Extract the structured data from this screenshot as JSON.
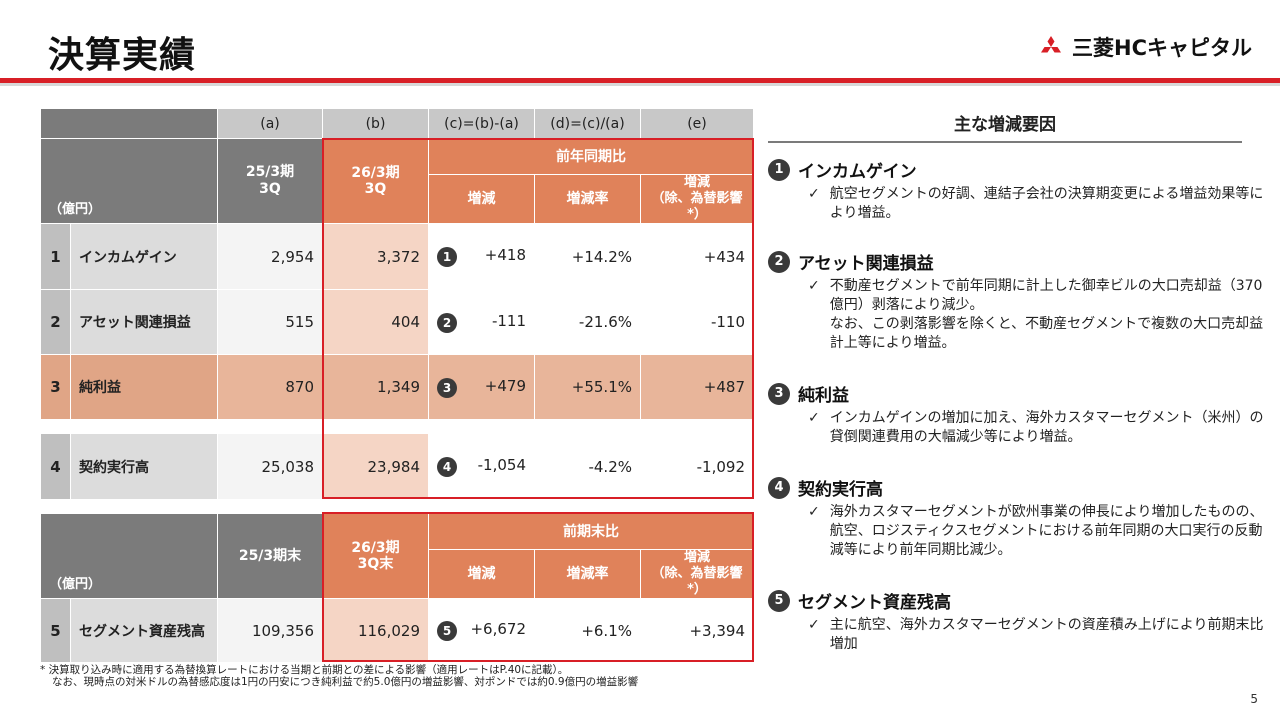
{
  "header": {
    "title": "決算実績",
    "logo_text": "三菱HCキャピタル",
    "brand_color": "#d81f26"
  },
  "table1": {
    "col_letters": [
      "(a)",
      "(b)",
      "(c)=(b)-(a)",
      "(d)=(c)/(a)",
      "(e)"
    ],
    "unit": "（億円）",
    "col_a": "25/3期\n3Q",
    "col_b": "26/3期\n3Q",
    "group": "前年同期比",
    "sub_change": "増減",
    "sub_rate": "増減率",
    "sub_excl": "増減\n（除、為替影響*）",
    "rows": [
      {
        "no": "1",
        "label": "インカムゲイン",
        "a": "2,954",
        "b": "3,372",
        "badge": "1",
        "c": "+418",
        "d": "+14.2%",
        "e": "+434"
      },
      {
        "no": "2",
        "label": "アセット関連損益",
        "a": "515",
        "b": "404",
        "badge": "2",
        "c": "-111",
        "d": "-21.6%",
        "e": "-110"
      },
      {
        "no": "3",
        "label": "純利益",
        "a": "870",
        "b": "1,349",
        "badge": "3",
        "c": "+479",
        "d": "+55.1%",
        "e": "+487"
      },
      {
        "no": "4",
        "label": "契約実行高",
        "a": "25,038",
        "b": "23,984",
        "badge": "4",
        "c": "-1,054",
        "d": "-4.2%",
        "e": "-1,092"
      }
    ]
  },
  "table2": {
    "unit": "（億円）",
    "col_a": "25/3期末",
    "col_b": "26/3期\n3Q末",
    "group": "前期末比",
    "sub_change": "増減",
    "sub_rate": "増減率",
    "sub_excl": "増減\n（除、為替影響*）",
    "row": {
      "no": "5",
      "label": "セグメント資産残高",
      "a": "109,356",
      "b": "116,029",
      "badge": "5",
      "c": "+6,672",
      "d": "+6.1%",
      "e": "+3,394"
    }
  },
  "factors": {
    "title": "主な増減要因",
    "check": "✓",
    "items": [
      {
        "no": "1",
        "heading": "インカムゲイン",
        "body": "航空セグメントの好調、連結子会社の決算期変更による増益効果等により増益。"
      },
      {
        "no": "2",
        "heading": "アセット関連損益",
        "body": "不動産セグメントで前年同期に計上した御幸ビルの大口売却益（370億円）剥落により減少。\nなお、この剥落影響を除くと、不動産セグメントで複数の大口売却益計上等により増益。"
      },
      {
        "no": "3",
        "heading": "純利益",
        "body": "インカムゲインの増加に加え、海外カスタマーセグメント（米州）の貸倒関連費用の大幅減少等により増益。"
      },
      {
        "no": "4",
        "heading": "契約実行高",
        "body": "海外カスタマーセグメントが欧州事業の伸長により増加したものの、航空、ロジスティクスセグメントにおける前年同期の大口実行の反動減等により前年同期比減少。"
      },
      {
        "no": "5",
        "heading": "セグメント資産残高",
        "body": "主に航空、海外カスタマーセグメントの資産積み上げにより前期末比増加"
      }
    ]
  },
  "footnote": {
    "line1": "*  決算取り込み時に適用する為替換算レートにおける当期と前期との差による影響（適用レートはP.40に記載）。",
    "line2": "なお、現時点の対米ドルの為替感応度は1円の円安につき純利益で約5.0億円の増益影響、対ポンドでは約0.9億円の増益影響"
  },
  "page_number": "5"
}
